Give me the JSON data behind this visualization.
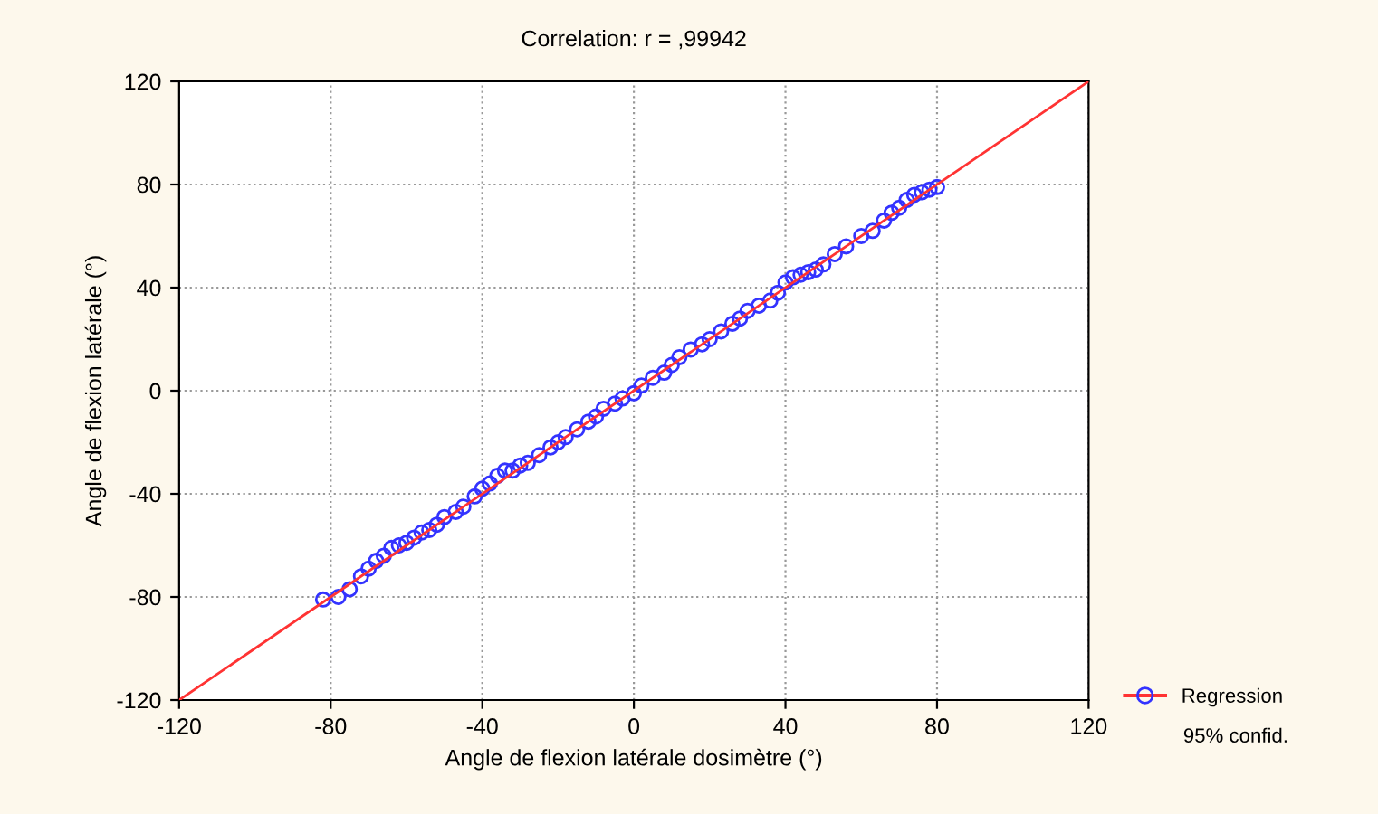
{
  "chart_data": {
    "type": "scatter",
    "title": "Correlation: r = ,99942",
    "xlabel": "Angle de flexion latérale dosimètre (°)",
    "ylabel": "Angle de flexion latérale (°)",
    "xlim": [
      -120,
      120
    ],
    "ylim": [
      -120,
      120
    ],
    "xticks": [
      -120,
      -80,
      -40,
      0,
      40,
      80,
      120
    ],
    "yticks": [
      -120,
      -80,
      -40,
      0,
      40,
      80,
      120
    ],
    "grid": true,
    "legend": "right",
    "annotations": [
      "95% confid."
    ],
    "series": [
      {
        "color": "#3333ff",
        "marker": "circle",
        "x": [
          -82,
          -78,
          -75,
          -72,
          -70,
          -68,
          -66,
          -64,
          -62,
          -60,
          -58,
          -56,
          -54,
          -52,
          -50,
          -47,
          -45,
          -42,
          -40,
          -38,
          -36,
          -34,
          -32,
          -30,
          -28,
          -25,
          -22,
          -20,
          -18,
          -15,
          -12,
          -10,
          -8,
          -5,
          -3,
          0,
          2,
          5,
          8,
          10,
          12,
          15,
          18,
          20,
          23,
          26,
          28,
          30,
          33,
          36,
          38,
          40,
          42,
          44,
          46,
          48,
          50,
          53,
          56,
          60,
          63,
          66,
          68,
          70,
          72,
          74,
          76,
          78,
          80
        ],
        "values": [
          -81,
          -80,
          -77,
          -72,
          -69,
          -66,
          -64,
          -61,
          -60,
          -59,
          -57,
          -55,
          -54,
          -52,
          -49,
          -47,
          -45,
          -41,
          -38,
          -36,
          -33,
          -31,
          -31,
          -29,
          -28,
          -25,
          -22,
          -20,
          -18,
          -15,
          -12,
          -10,
          -7,
          -5,
          -3,
          -1,
          2,
          5,
          7,
          10,
          13,
          16,
          18,
          20,
          23,
          26,
          28,
          31,
          33,
          35,
          38,
          42,
          44,
          45,
          46,
          47,
          49,
          53,
          56,
          60,
          62,
          66,
          69,
          71,
          74,
          76,
          77,
          78,
          79
        ]
      },
      {
        "type": "line",
        "name": "Regression",
        "color": "#ff3333",
        "line_style": "solid",
        "x": [
          -120,
          120
        ],
        "values": [
          -120,
          120
        ]
      }
    ]
  }
}
